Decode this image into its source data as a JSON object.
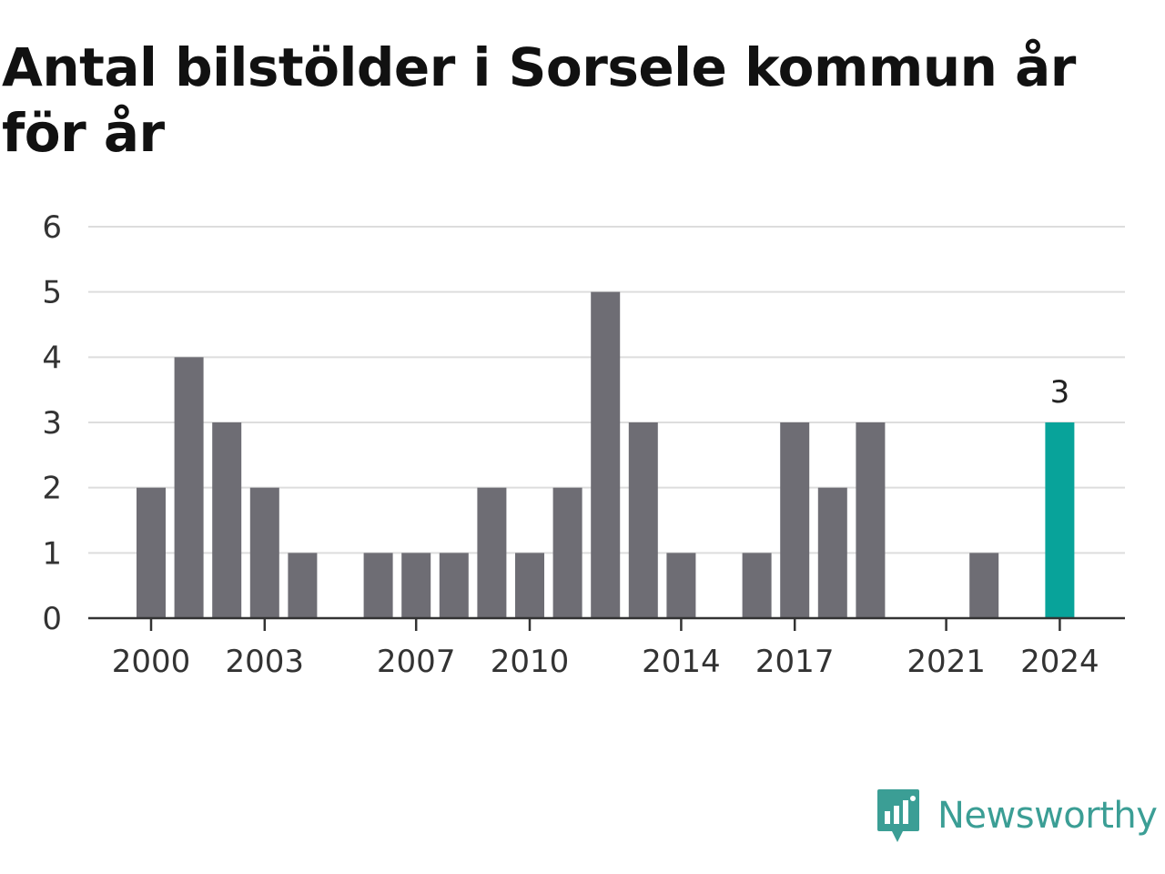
{
  "chart_data": {
    "type": "bar",
    "title": "Antal bilstölder i Sorsele kommun år för år",
    "categories": [
      2000,
      2001,
      2002,
      2003,
      2004,
      2005,
      2006,
      2007,
      2008,
      2009,
      2010,
      2011,
      2012,
      2013,
      2014,
      2015,
      2016,
      2017,
      2018,
      2019,
      2020,
      2021,
      2022,
      2023,
      2024
    ],
    "values": [
      2,
      4,
      3,
      2,
      1,
      0,
      1,
      1,
      1,
      2,
      1,
      2,
      5,
      3,
      1,
      0,
      1,
      3,
      2,
      3,
      0,
      0,
      1,
      0,
      3
    ],
    "x_tick_labels": [
      "2000",
      "2003",
      "2007",
      "2010",
      "2014",
      "2017",
      "2021",
      "2024"
    ],
    "y_ticks": [
      0,
      1,
      2,
      3,
      4,
      5,
      6
    ],
    "ylim": [
      0,
      6
    ],
    "highlight": {
      "category": 2024,
      "label": "3"
    },
    "grid": true,
    "colors": {
      "bar": "#6e6d74",
      "highlight": "#08a39a",
      "grid": "#dddddd",
      "axis": "#333333"
    }
  },
  "brand": {
    "name": "Newsworthy",
    "icon": "chart-speech-bubble-icon",
    "color": "#3b9e95"
  }
}
